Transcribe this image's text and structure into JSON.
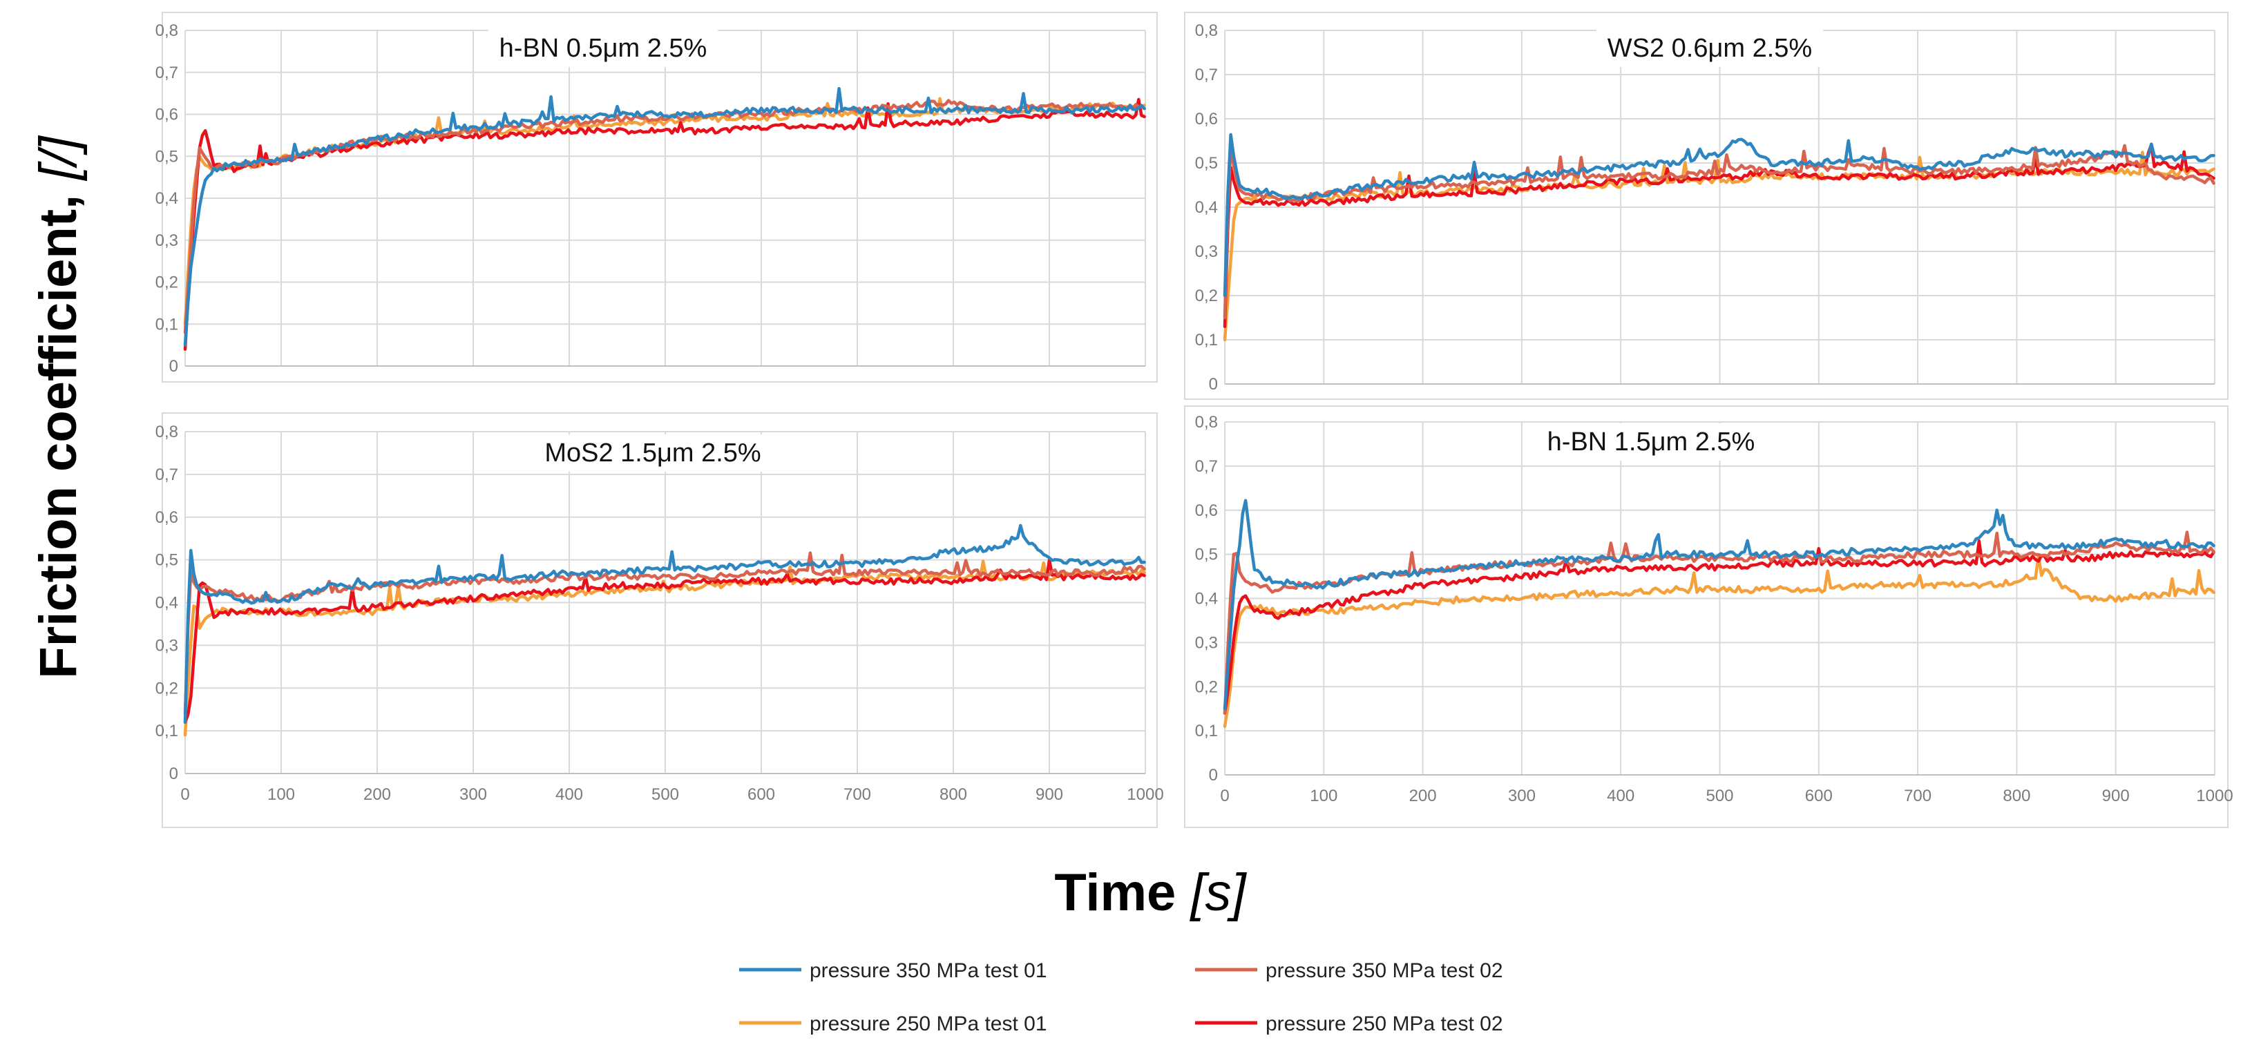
{
  "colors": {
    "p350_t01": "#2e86c1",
    "p350_t02": "#d9634e",
    "p250_t01": "#f5a13b",
    "p250_t02": "#e8111b"
  },
  "labels": {
    "ylabel_main": "Friction coefficient, ",
    "ylabel_unit": "[/]",
    "xlabel_main": "Time ",
    "xlabel_unit": "[s]"
  },
  "legend": [
    {
      "key": "p350_t01",
      "label": "pressure 350 MPa test 01"
    },
    {
      "key": "p350_t02",
      "label": "pressure 350 MPa test 02"
    },
    {
      "key": "p250_t01",
      "label": "pressure 250 MPa test 01"
    },
    {
      "key": "p250_t02",
      "label": "pressure 250 MPa test 02"
    }
  ],
  "chart_data": [
    {
      "type": "line",
      "title": "h-BN 0.5μm 2.5%",
      "xlabel": "Time [s]",
      "ylabel": "Friction coefficient, [/]",
      "xlim": [
        0,
        1000
      ],
      "ylim": [
        0,
        0.8
      ],
      "x_ticks": [
        "0",
        "100",
        "200",
        "300",
        "400",
        "500",
        "600",
        "700",
        "800",
        "900",
        "1000"
      ],
      "y_ticks": [
        "0",
        "0,1",
        "0,2",
        "0,3",
        "0,4",
        "0,5",
        "0,6",
        "0,7",
        "0,8"
      ],
      "x_tick_labels_visible": false,
      "x": [
        0,
        5,
        10,
        15,
        20,
        30,
        50,
        75,
        100,
        150,
        200,
        250,
        300,
        350,
        400,
        450,
        500,
        550,
        600,
        650,
        700,
        750,
        800,
        850,
        900,
        950,
        1000
      ],
      "series": [
        {
          "name": "pressure 350 MPa test 01",
          "key": "p350_t01",
          "values": [
            0.05,
            0.22,
            0.3,
            0.38,
            0.44,
            0.47,
            0.48,
            0.49,
            0.49,
            0.52,
            0.54,
            0.56,
            0.57,
            0.58,
            0.59,
            0.6,
            0.6,
            0.6,
            0.61,
            0.61,
            0.61,
            0.61,
            0.61,
            0.61,
            0.61,
            0.61,
            0.62
          ]
        },
        {
          "name": "pressure 350 MPa test 02",
          "key": "p350_t02",
          "values": [
            0.08,
            0.25,
            0.42,
            0.52,
            0.5,
            0.47,
            0.48,
            0.48,
            0.49,
            0.52,
            0.54,
            0.55,
            0.56,
            0.57,
            0.58,
            0.59,
            0.59,
            0.6,
            0.6,
            0.61,
            0.61,
            0.62,
            0.63,
            0.61,
            0.62,
            0.62,
            0.62
          ]
        },
        {
          "name": "pressure 250 MPa test 01",
          "key": "p250_t01",
          "values": [
            0.1,
            0.3,
            0.45,
            0.5,
            0.48,
            0.47,
            0.47,
            0.48,
            0.5,
            0.52,
            0.53,
            0.55,
            0.56,
            0.56,
            0.57,
            0.58,
            0.58,
            0.59,
            0.59,
            0.6,
            0.6,
            0.6,
            0.61,
            0.61,
            0.61,
            0.62,
            0.62
          ]
        },
        {
          "name": "pressure 250 MPa test 02",
          "key": "p250_t02",
          "values": [
            0.04,
            0.24,
            0.38,
            0.52,
            0.57,
            0.48,
            0.47,
            0.48,
            0.49,
            0.51,
            0.53,
            0.54,
            0.55,
            0.55,
            0.56,
            0.56,
            0.56,
            0.56,
            0.57,
            0.57,
            0.57,
            0.58,
            0.58,
            0.59,
            0.6,
            0.6,
            0.59
          ]
        }
      ]
    },
    {
      "type": "line",
      "title": "WS2 0.6μm 2.5%",
      "xlabel": "Time [s]",
      "ylabel": "Friction coefficient, [/]",
      "xlim": [
        0,
        1000
      ],
      "ylim": [
        0,
        0.8
      ],
      "x_ticks": [
        "0",
        "100",
        "200",
        "300",
        "400",
        "500",
        "600",
        "700",
        "800",
        "900",
        "1000"
      ],
      "y_ticks": [
        "0",
        "0,1",
        "0,2",
        "0,3",
        "0,4",
        "0,5",
        "0,6",
        "0,7",
        "0,8"
      ],
      "x_tick_labels_visible": false,
      "x": [
        0,
        5,
        10,
        15,
        20,
        30,
        50,
        75,
        100,
        150,
        200,
        250,
        300,
        350,
        400,
        450,
        500,
        520,
        550,
        600,
        650,
        700,
        750,
        800,
        850,
        900,
        950,
        1000
      ],
      "series": [
        {
          "name": "pressure 350 MPa test 01",
          "key": "p350_t01",
          "values": [
            0.2,
            0.58,
            0.5,
            0.45,
            0.44,
            0.44,
            0.43,
            0.42,
            0.43,
            0.45,
            0.46,
            0.47,
            0.47,
            0.48,
            0.49,
            0.5,
            0.52,
            0.56,
            0.5,
            0.5,
            0.51,
            0.49,
            0.5,
            0.53,
            0.52,
            0.52,
            0.51,
            0.51
          ]
        },
        {
          "name": "pressure 350 MPa test 02",
          "key": "p350_t02",
          "values": [
            0.15,
            0.55,
            0.48,
            0.44,
            0.43,
            0.43,
            0.42,
            0.42,
            0.43,
            0.44,
            0.45,
            0.45,
            0.46,
            0.47,
            0.47,
            0.47,
            0.48,
            0.49,
            0.48,
            0.49,
            0.49,
            0.48,
            0.48,
            0.49,
            0.5,
            0.52,
            0.47,
            0.46
          ]
        },
        {
          "name": "pressure 250 MPa test 01",
          "key": "p250_t01",
          "values": [
            0.1,
            0.25,
            0.4,
            0.41,
            0.42,
            0.42,
            0.42,
            0.42,
            0.42,
            0.43,
            0.43,
            0.44,
            0.44,
            0.45,
            0.45,
            0.46,
            0.46,
            0.46,
            0.47,
            0.47,
            0.47,
            0.47,
            0.47,
            0.48,
            0.48,
            0.48,
            0.48,
            0.48
          ]
        },
        {
          "name": "pressure 250 MPa test 02",
          "key": "p250_t02",
          "values": [
            0.13,
            0.5,
            0.45,
            0.42,
            0.41,
            0.41,
            0.41,
            0.41,
            0.41,
            0.42,
            0.43,
            0.43,
            0.44,
            0.45,
            0.46,
            0.46,
            0.47,
            0.47,
            0.48,
            0.47,
            0.47,
            0.47,
            0.47,
            0.48,
            0.48,
            0.49,
            0.5,
            0.47
          ]
        }
      ]
    },
    {
      "type": "line",
      "title": "MoS2 1.5μm 2.5%",
      "xlabel": "Time [s]",
      "ylabel": "Friction coefficient, [/]",
      "xlim": [
        0,
        1000
      ],
      "ylim": [
        0,
        0.8
      ],
      "x_ticks": [
        "0",
        "100",
        "200",
        "300",
        "400",
        "500",
        "600",
        "700",
        "800",
        "900",
        "1000"
      ],
      "y_ticks": [
        "0",
        "0,1",
        "0,2",
        "0,3",
        "0,4",
        "0,5",
        "0,6",
        "0,7",
        "0,8"
      ],
      "x_tick_labels_visible": true,
      "x": [
        0,
        5,
        10,
        15,
        20,
        30,
        50,
        75,
        100,
        150,
        200,
        250,
        300,
        350,
        400,
        450,
        500,
        550,
        600,
        650,
        700,
        750,
        800,
        850,
        870,
        900,
        950,
        1000
      ],
      "series": [
        {
          "name": "pressure 350 MPa test 01",
          "key": "p350_t01",
          "values": [
            0.12,
            0.54,
            0.45,
            0.43,
            0.42,
            0.42,
            0.41,
            0.4,
            0.4,
            0.44,
            0.44,
            0.45,
            0.46,
            0.46,
            0.47,
            0.47,
            0.48,
            0.48,
            0.49,
            0.49,
            0.49,
            0.5,
            0.52,
            0.53,
            0.56,
            0.5,
            0.49,
            0.5
          ]
        },
        {
          "name": "pressure 350 MPa test 02",
          "key": "p350_t02",
          "values": [
            0.14,
            0.48,
            0.44,
            0.43,
            0.44,
            0.43,
            0.42,
            0.41,
            0.41,
            0.43,
            0.44,
            0.44,
            0.45,
            0.45,
            0.46,
            0.46,
            0.46,
            0.46,
            0.47,
            0.47,
            0.47,
            0.47,
            0.47,
            0.47,
            0.47,
            0.47,
            0.47,
            0.48
          ]
        },
        {
          "name": "pressure 250 MPa test 01",
          "key": "p250_t01",
          "values": [
            0.09,
            0.28,
            0.42,
            0.34,
            0.36,
            0.38,
            0.38,
            0.38,
            0.38,
            0.37,
            0.38,
            0.4,
            0.41,
            0.41,
            0.42,
            0.43,
            0.43,
            0.44,
            0.45,
            0.45,
            0.46,
            0.46,
            0.46,
            0.46,
            0.46,
            0.46,
            0.47,
            0.47
          ]
        },
        {
          "name": "pressure 250 MPa test 02",
          "key": "p250_t02",
          "values": [
            0.12,
            0.15,
            0.3,
            0.44,
            0.45,
            0.37,
            0.38,
            0.38,
            0.38,
            0.38,
            0.39,
            0.4,
            0.41,
            0.42,
            0.43,
            0.44,
            0.44,
            0.45,
            0.45,
            0.45,
            0.45,
            0.45,
            0.45,
            0.46,
            0.46,
            0.46,
            0.46,
            0.46
          ]
        }
      ]
    },
    {
      "type": "line",
      "title": "h-BN 1.5μm 2.5%",
      "xlabel": "Time [s]",
      "ylabel": "Friction coefficient, [/]",
      "xlim": [
        0,
        1000
      ],
      "ylim": [
        0,
        0.8
      ],
      "x_ticks": [
        "0",
        "100",
        "200",
        "300",
        "400",
        "500",
        "600",
        "700",
        "800",
        "900",
        "1000"
      ],
      "y_ticks": [
        "0",
        "0,1",
        "0,2",
        "0,3",
        "0,4",
        "0,5",
        "0,6",
        "0,7",
        "0,8"
      ],
      "x_tick_labels_visible": true,
      "x": [
        0,
        5,
        10,
        15,
        20,
        30,
        50,
        75,
        100,
        150,
        200,
        250,
        300,
        350,
        400,
        450,
        500,
        550,
        600,
        650,
        700,
        750,
        780,
        800,
        830,
        850,
        870,
        900,
        950,
        1000
      ],
      "series": [
        {
          "name": "pressure 350 MPa test 01",
          "key": "p350_t01",
          "values": [
            0.15,
            0.3,
            0.45,
            0.52,
            0.64,
            0.46,
            0.44,
            0.43,
            0.43,
            0.45,
            0.46,
            0.47,
            0.48,
            0.49,
            0.49,
            0.5,
            0.5,
            0.5,
            0.5,
            0.51,
            0.51,
            0.52,
            0.57,
            0.52,
            0.52,
            0.52,
            0.52,
            0.53,
            0.52,
            0.52
          ]
        },
        {
          "name": "pressure 350 MPa test 02",
          "key": "p350_t02",
          "values": [
            0.14,
            0.38,
            0.53,
            0.46,
            0.44,
            0.43,
            0.42,
            0.43,
            0.43,
            0.45,
            0.46,
            0.47,
            0.48,
            0.48,
            0.49,
            0.49,
            0.49,
            0.49,
            0.49,
            0.49,
            0.5,
            0.5,
            0.5,
            0.5,
            0.5,
            0.5,
            0.51,
            0.52,
            0.51,
            0.51
          ]
        },
        {
          "name": "pressure 250 MPa test 01",
          "key": "p250_t01",
          "values": [
            0.11,
            0.18,
            0.3,
            0.36,
            0.38,
            0.38,
            0.37,
            0.37,
            0.37,
            0.38,
            0.39,
            0.4,
            0.4,
            0.41,
            0.41,
            0.42,
            0.42,
            0.42,
            0.42,
            0.43,
            0.43,
            0.43,
            0.43,
            0.44,
            0.46,
            0.42,
            0.4,
            0.4,
            0.41,
            0.42
          ]
        },
        {
          "name": "pressure 250 MPa test 02",
          "key": "p250_t02",
          "values": [
            0.14,
            0.22,
            0.33,
            0.39,
            0.41,
            0.37,
            0.36,
            0.37,
            0.38,
            0.41,
            0.43,
            0.44,
            0.45,
            0.46,
            0.47,
            0.47,
            0.47,
            0.48,
            0.48,
            0.48,
            0.48,
            0.48,
            0.48,
            0.49,
            0.49,
            0.49,
            0.49,
            0.5,
            0.5,
            0.5
          ]
        }
      ]
    }
  ]
}
